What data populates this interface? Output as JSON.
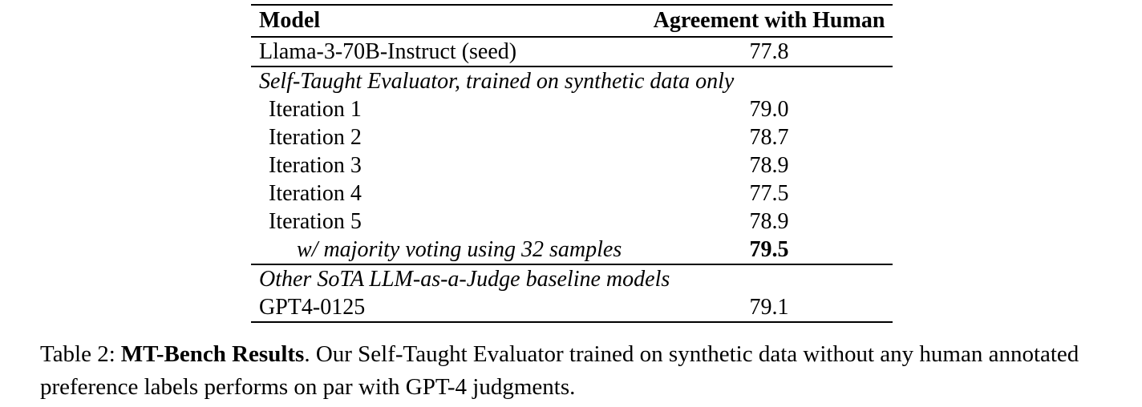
{
  "table": {
    "header": {
      "model": "Model",
      "value": "Agreement with Human"
    },
    "rows": [
      {
        "model": "Llama-3-70B-Instruct (seed)",
        "value": "77.8"
      },
      {
        "label": "Self-Taught Evaluator, trained on synthetic data only"
      },
      {
        "model": "Iteration 1",
        "value": "79.0"
      },
      {
        "model": "Iteration 2",
        "value": "78.7"
      },
      {
        "model": "Iteration 3",
        "value": "78.9"
      },
      {
        "model": "Iteration 4",
        "value": "77.5"
      },
      {
        "model": "Iteration 5",
        "value": "78.9"
      },
      {
        "model": "w/ majority voting using 32 samples",
        "value": "79.5"
      },
      {
        "label": "Other SoTA LLM-as-a-Judge baseline models"
      },
      {
        "model": "GPT4-0125",
        "value": "79.1"
      }
    ]
  },
  "caption": {
    "label": "Table 2:",
    "title": "MT-Bench Results",
    "body": ". Our Self-Taught Evaluator trained on synthetic data without any human annotated preference labels performs on par with GPT-4 judgments."
  }
}
